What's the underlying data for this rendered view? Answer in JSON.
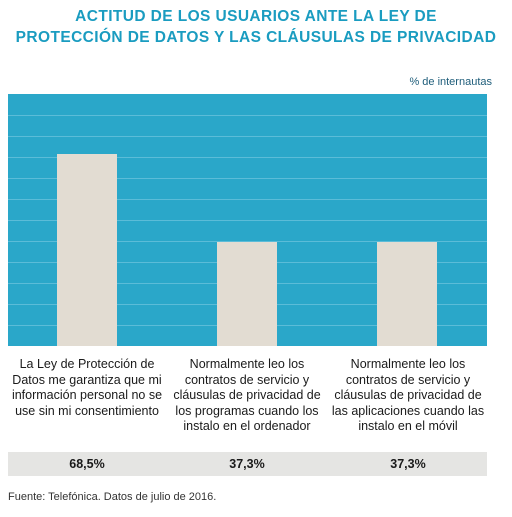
{
  "chart_data": {
    "type": "bar",
    "title_lines": [
      "ACTITUD DE LOS USUARIOS ANTE LA LEY DE",
      "PROTECCIÓN DE DATOS Y LAS CLÁUSULAS DE PRIVACIDAD"
    ],
    "unit_label": "% de internautas",
    "categories": [
      "La Ley de Protección de Datos me garantiza que mi información personal no se use sin mi consentimiento",
      "Normalmente leo los contratos de servicio y cláusulas de privacidad de los programas cuando los instalo en el ordenador",
      "Normalmente leo los contratos de servicio y cláusulas de privacidad de las aplicaciones cuando las instalo en el móvil"
    ],
    "values": [
      68.5,
      37.3,
      37.3
    ],
    "value_labels": [
      "68,5%",
      "37,3%",
      "37,3%"
    ],
    "ylim": [
      0,
      90
    ],
    "gridlines": 11,
    "colors": {
      "plot_bg": "#2aa7c9",
      "bar": "#e2dcd2",
      "title": "#1a9cc0"
    }
  },
  "source": "Fuente: Telefónica. Datos de julio de 2016."
}
